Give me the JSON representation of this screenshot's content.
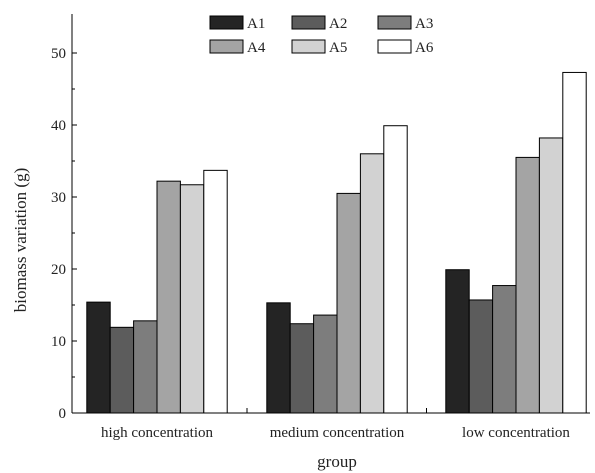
{
  "chart_data": {
    "type": "bar",
    "title": "",
    "xlabel": "group",
    "ylabel": "biomass variation (g)",
    "categories": [
      "high concentration",
      "medium concentration",
      "low concentration"
    ],
    "series": [
      {
        "name": "A1",
        "color": "#242424",
        "values": [
          15.4,
          15.3,
          19.9
        ]
      },
      {
        "name": "A2",
        "color": "#5c5c5c",
        "values": [
          11.9,
          12.4,
          15.7
        ]
      },
      {
        "name": "A3",
        "color": "#7d7d7d",
        "values": [
          12.8,
          13.6,
          17.7
        ]
      },
      {
        "name": "A4",
        "color": "#a4a4a4",
        "values": [
          32.2,
          30.5,
          35.5
        ]
      },
      {
        "name": "A5",
        "color": "#d2d2d2",
        "values": [
          31.7,
          36.0,
          38.2
        ]
      },
      {
        "name": "A6",
        "color": "#ffffff",
        "values": [
          33.7,
          39.9,
          47.3
        ]
      }
    ],
    "ylim": [
      0,
      55
    ],
    "yticks": [
      0,
      10,
      20,
      30,
      40,
      50
    ],
    "legend": {
      "position": "top-center",
      "columns": 3
    },
    "grid": false
  }
}
